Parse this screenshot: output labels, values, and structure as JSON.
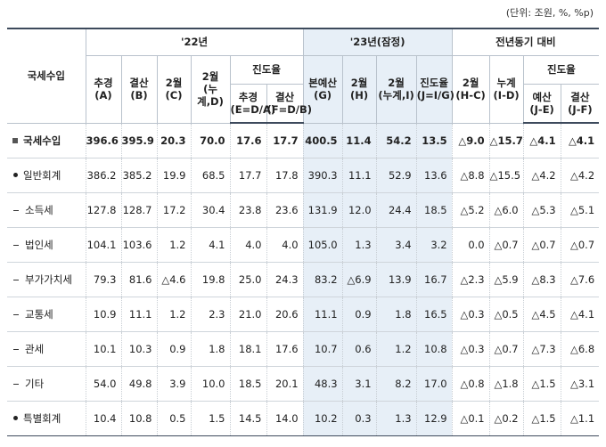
{
  "unit_note": "(단위: 조원, %, %p)",
  "header": {
    "row_label": "국세수입",
    "group_22": "'22년",
    "group_23": "'23년(잠정)",
    "group_yoy": "전년동기 대비",
    "progress_22": "진도율",
    "progress_yoy": "진도율",
    "cols": [
      {
        "l1": "추경",
        "l2": "(A)"
      },
      {
        "l1": "결산",
        "l2": "(B)"
      },
      {
        "l1": "2월",
        "l2": "(C)"
      },
      {
        "l1": "2월",
        "l2": "(누계,D)"
      },
      {
        "l1": "추경",
        "l2": "(E=D/A)"
      },
      {
        "l1": "결산",
        "l2": "(F=D/B)"
      },
      {
        "l1": "본예산",
        "l2": "(G)"
      },
      {
        "l1": "2월",
        "l2": "(H)"
      },
      {
        "l1": "2월",
        "l2": "(누계,I)"
      },
      {
        "l1": "진도율",
        "l2": "(J=I/G)"
      },
      {
        "l1": "2월",
        "l2": "(H-C)"
      },
      {
        "l1": "누계",
        "l2": "(I-D)"
      },
      {
        "l1": "예산",
        "l2": "(J-E)"
      },
      {
        "l1": "결산",
        "l2": "(J-F)"
      }
    ]
  },
  "rows": [
    {
      "label": "국세수입",
      "bullet": "square",
      "values": [
        "396.6",
        "395.9",
        "20.3",
        "70.0",
        "17.6",
        "17.7",
        "400.5",
        "11.4",
        "54.2",
        "13.5",
        "△9.0",
        "△15.7",
        "△4.1",
        "△4.1"
      ]
    },
    {
      "label": "일반회계",
      "bullet": "dot",
      "values": [
        "386.2",
        "385.2",
        "19.9",
        "68.5",
        "17.7",
        "17.8",
        "390.3",
        "11.1",
        "52.9",
        "13.6",
        "△8.8",
        "△15.5",
        "△4.2",
        "△4.2"
      ]
    },
    {
      "label": "소득세",
      "bullet": "dash",
      "values": [
        "127.8",
        "128.7",
        "17.2",
        "30.4",
        "23.8",
        "23.6",
        "131.9",
        "12.0",
        "24.4",
        "18.5",
        "△5.2",
        "△6.0",
        "△5.3",
        "△5.1"
      ]
    },
    {
      "label": "법인세",
      "bullet": "dash",
      "values": [
        "104.1",
        "103.6",
        "1.2",
        "4.1",
        "4.0",
        "4.0",
        "105.0",
        "1.3",
        "3.4",
        "3.2",
        "0.0",
        "△0.7",
        "△0.7",
        "△0.7"
      ]
    },
    {
      "label": "부가가치세",
      "bullet": "dash",
      "values": [
        "79.3",
        "81.6",
        "△4.6",
        "19.8",
        "25.0",
        "24.3",
        "83.2",
        "△6.9",
        "13.9",
        "16.7",
        "△2.3",
        "△5.9",
        "△8.3",
        "△7.6"
      ]
    },
    {
      "label": "교통세",
      "bullet": "dash",
      "values": [
        "10.9",
        "11.1",
        "1.2",
        "2.3",
        "21.0",
        "20.6",
        "11.1",
        "0.9",
        "1.8",
        "16.5",
        "△0.3",
        "△0.5",
        "△4.5",
        "△4.1"
      ]
    },
    {
      "label": "관세",
      "bullet": "dash",
      "values": [
        "10.1",
        "10.3",
        "0.9",
        "1.8",
        "18.1",
        "17.6",
        "10.7",
        "0.6",
        "1.2",
        "10.8",
        "△0.3",
        "△0.7",
        "△7.3",
        "△6.8"
      ]
    },
    {
      "label": "기타",
      "bullet": "dash",
      "values": [
        "54.0",
        "49.8",
        "3.9",
        "10.0",
        "18.5",
        "20.1",
        "48.3",
        "3.1",
        "8.2",
        "17.0",
        "△0.8",
        "△1.8",
        "△1.5",
        "△3.1"
      ]
    },
    {
      "label": "특별회계",
      "bullet": "dot",
      "values": [
        "10.4",
        "10.8",
        "0.5",
        "1.5",
        "14.5",
        "14.0",
        "10.2",
        "0.3",
        "1.3",
        "12.9",
        "△0.1",
        "△0.2",
        "△1.5",
        "△1.1"
      ]
    }
  ],
  "colors": {
    "highlight": "#e7eff7",
    "rule": "#3d4a5c"
  }
}
